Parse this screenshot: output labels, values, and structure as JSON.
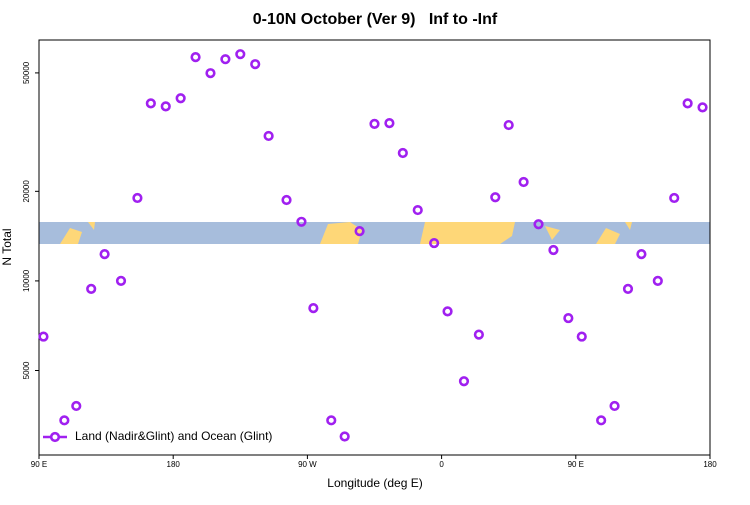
{
  "chart_data": {
    "type": "scatter",
    "title": "0-10N October (Ver 9)   Inf to -Inf",
    "xlabel": "Longitude (deg E)",
    "ylabel": "N Total",
    "xlim": [
      90,
      540
    ],
    "xticks": [
      {
        "value": 90,
        "label": "90 E"
      },
      {
        "value": 180,
        "label": "180"
      },
      {
        "value": 270,
        "label": "90 W"
      },
      {
        "value": 360,
        "label": "0"
      },
      {
        "value": 450,
        "label": "90 E"
      },
      {
        "value": 540,
        "label": "180"
      }
    ],
    "ylim": [
      2600,
      64500
    ],
    "yticks": [
      5000,
      10000,
      20000,
      50000
    ],
    "ylog": true,
    "legend": "lower left",
    "series": [
      {
        "name": "Land (Nadir&Glint) and Ocean (Glint)",
        "color": "#a020f0",
        "x": [
          93,
          107,
          115,
          125,
          134,
          145,
          156,
          165,
          175,
          185,
          195,
          205,
          215,
          225,
          235,
          244,
          256,
          266,
          274,
          286,
          295,
          305,
          315,
          325,
          334,
          344,
          355,
          364,
          375,
          385,
          396,
          405,
          415,
          425,
          435,
          445,
          454,
          467,
          476,
          485,
          494,
          505,
          516,
          525,
          535
        ],
        "values": [
          6500,
          3400,
          3800,
          9400,
          12300,
          10000,
          19000,
          39500,
          38600,
          41100,
          56500,
          49900,
          55600,
          57800,
          53500,
          30700,
          18700,
          15800,
          8100,
          3400,
          3000,
          14700,
          33700,
          33900,
          26900,
          17300,
          13400,
          7900,
          4600,
          6600,
          19100,
          33400,
          21500,
          15500,
          12700,
          7500,
          6500,
          3400,
          3800,
          9400,
          12300,
          10000,
          19000,
          39500,
          38300
        ]
      }
    ]
  }
}
